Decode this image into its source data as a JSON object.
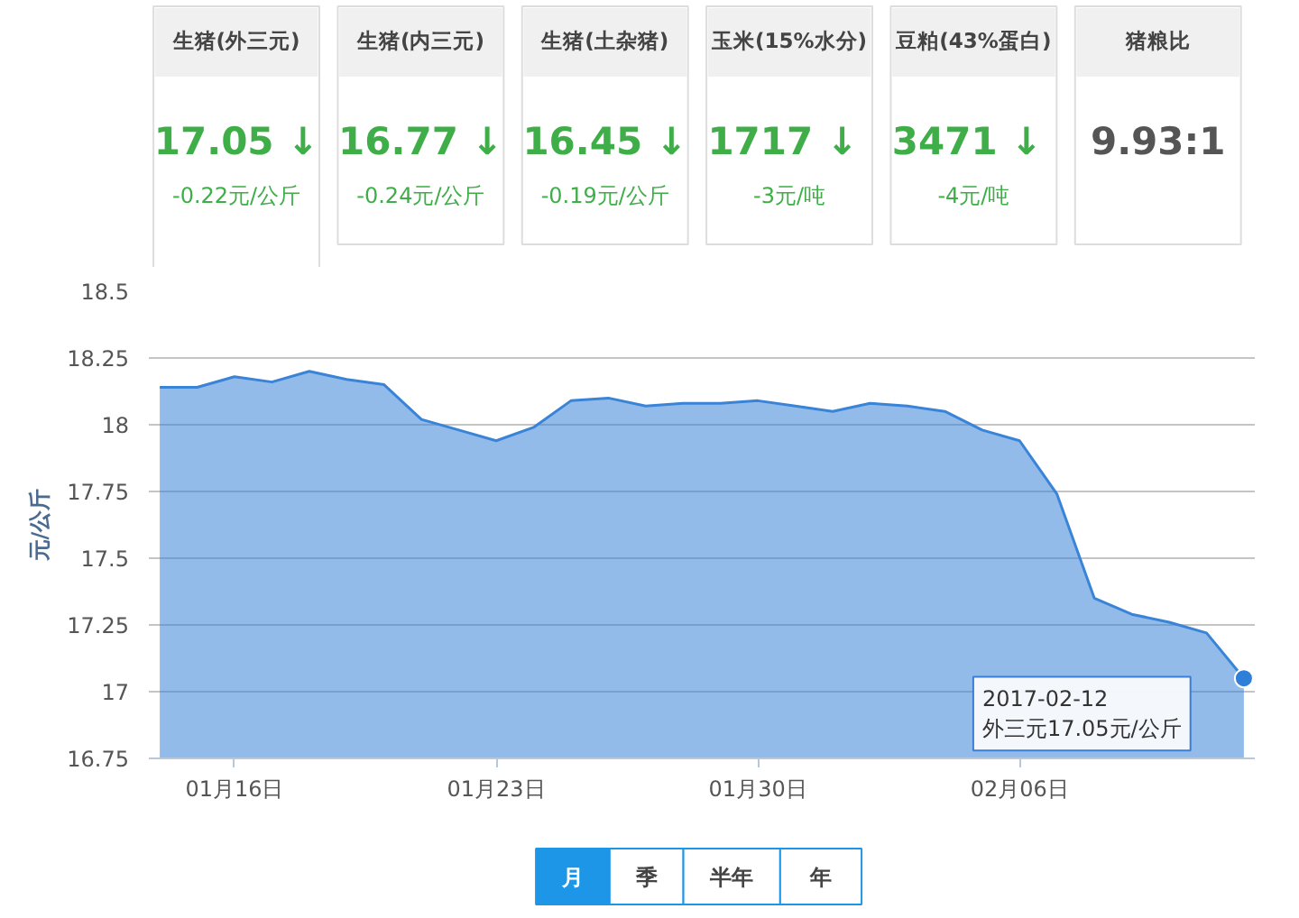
{
  "chart_data": [
    {
      "type": "other",
      "categories": [
        "生猪(外三元)",
        "生猪(内三元)",
        "生猪(土杂猪)",
        "玉米(15%水分)",
        "豆粕(43%蛋白)",
        "猪粮比"
      ],
      "value_labels": [
        "17.05 ↓",
        "16.77 ↓",
        "16.45 ↓",
        "1717  ↓",
        "3471  ↓",
        "9.93:1"
      ],
      "annotations": [
        "-0.22元/公斤",
        "-0.24元/公斤",
        "-0.19元/公斤",
        "-3元/吨",
        "-4元/吨"
      ]
    },
    {
      "type": "area",
      "ylabel": "元/公斤",
      "x": [
        "2017-01-14",
        "2017-01-15",
        "2017-01-16",
        "2017-01-17",
        "2017-01-18",
        "2017-01-19",
        "2017-01-20",
        "2017-01-21",
        "2017-01-22",
        "2017-01-23",
        "2017-01-24",
        "2017-01-25",
        "2017-01-26",
        "2017-01-27",
        "2017-01-28",
        "2017-01-29",
        "2017-01-30",
        "2017-01-31",
        "2017-02-01",
        "2017-02-02",
        "2017-02-03",
        "2017-02-04",
        "2017-02-05",
        "2017-02-06",
        "2017-02-07",
        "2017-02-08",
        "2017-02-09",
        "2017-02-10",
        "2017-02-11",
        "2017-02-12"
      ],
      "series": [
        {
          "color": "#3a84d8",
          "values": [
            18.14,
            18.14,
            18.18,
            18.16,
            18.2,
            18.17,
            18.15,
            18.02,
            17.98,
            17.94,
            17.99,
            18.09,
            18.1,
            18.07,
            18.08,
            18.08,
            18.09,
            18.07,
            18.05,
            18.08,
            18.07,
            18.05,
            17.98,
            17.94,
            17.74,
            17.35,
            17.29,
            17.26,
            17.22,
            17.05
          ]
        }
      ],
      "xlim": [
        "2017-01-13T17:00",
        "2017-02-12T07:00"
      ],
      "xticks": [
        {
          "value": "2017-01-16",
          "label": "01月16日"
        },
        {
          "value": "2017-01-23",
          "label": "01月23日"
        },
        {
          "value": "2017-01-30",
          "label": "01月30日"
        },
        {
          "value": "2017-02-06",
          "label": "02月06日"
        }
      ],
      "ylim": [
        16.75,
        18.5
      ],
      "yticks": [
        16.75,
        17,
        17.25,
        17.5,
        17.75,
        18,
        18.25,
        18.5
      ],
      "grid": "y",
      "annotations": [
        {
          "text": "2017-02-12\n外三元17.05元/公斤",
          "x": "2017-02-12",
          "y": 17.05
        },
        "月",
        "季",
        "半年",
        "年"
      ]
    }
  ]
}
